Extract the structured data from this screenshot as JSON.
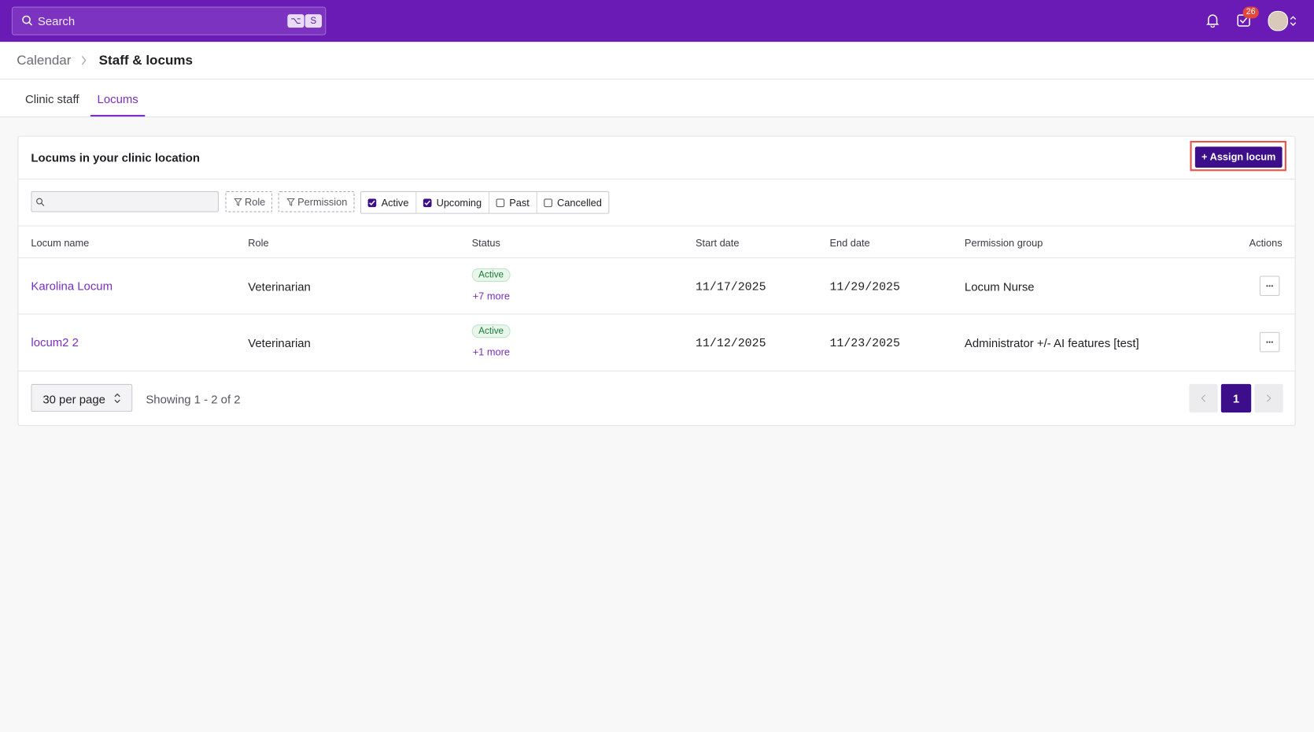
{
  "header": {
    "search_placeholder": "Search",
    "shortcut_keys": [
      "⌥",
      "S"
    ],
    "inbox_badge": "26"
  },
  "breadcrumb": [
    "Calendar",
    "Staff & locums"
  ],
  "tabs": {
    "items": [
      "Clinic staff",
      "Locums"
    ],
    "active": 1
  },
  "panel": {
    "title": "Locums in your clinic location",
    "assign_button": "Assign locum",
    "filters": {
      "chips": [
        "Role",
        "Permission"
      ],
      "checkboxes": [
        {
          "label": "Active",
          "checked": true
        },
        {
          "label": "Upcoming",
          "checked": true
        },
        {
          "label": "Past",
          "checked": false
        },
        {
          "label": "Cancelled",
          "checked": false
        }
      ]
    },
    "table": {
      "columns": [
        "Locum name",
        "Role",
        "Status",
        "Start date",
        "End date",
        "Permission group",
        "Actions"
      ],
      "rows": [
        [
          "Karolina Locum",
          "Veterinarian",
          "Active",
          "+7 more",
          "11/17/2025",
          "11/29/2025",
          "Locum Nurse"
        ],
        [
          "locum2 2",
          "Veterinarian",
          "Active",
          "+1 more",
          "11/12/2025",
          "11/23/2025",
          "Administrator +/- AI features [test]"
        ]
      ]
    },
    "footer": {
      "per_page": "30 per page",
      "showing": "Showing 1 - 2 of 2",
      "current_page": "1"
    }
  }
}
